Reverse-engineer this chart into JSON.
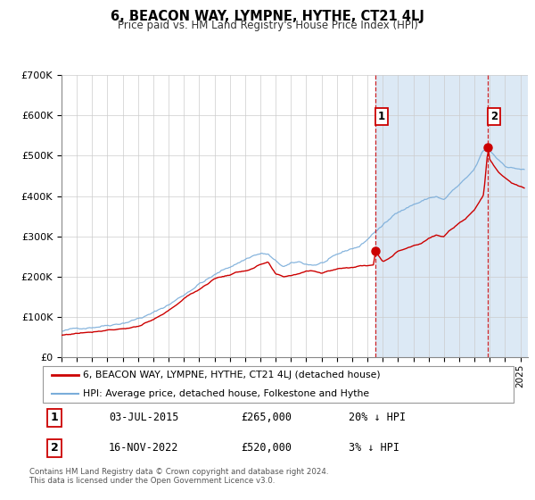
{
  "title": "6, BEACON WAY, LYMPNE, HYTHE, CT21 4LJ",
  "subtitle": "Price paid vs. HM Land Registry's House Price Index (HPI)",
  "legend_label1": "6, BEACON WAY, LYMPNE, HYTHE, CT21 4LJ (detached house)",
  "legend_label2": "HPI: Average price, detached house, Folkestone and Hythe",
  "sale1_date": "03-JUL-2015",
  "sale1_price": 265000,
  "sale1_hpi_text": "20% ↓ HPI",
  "sale2_date": "16-NOV-2022",
  "sale2_price": 520000,
  "sale2_hpi_text": "3% ↓ HPI",
  "footer": "Contains HM Land Registry data © Crown copyright and database right 2024.\nThis data is licensed under the Open Government Licence v3.0.",
  "red_color": "#cc0000",
  "blue_color": "#7aadda",
  "vline_color": "#cc0000",
  "span_color": "#dce9f5",
  "plot_bg_color": "#ffffff",
  "grid_color": "#cccccc",
  "ylim": [
    0,
    700000
  ],
  "xlim_start": 1995.0,
  "xlim_end": 2025.5,
  "sale1_x": 2015.54,
  "sale2_x": 2022.88
}
